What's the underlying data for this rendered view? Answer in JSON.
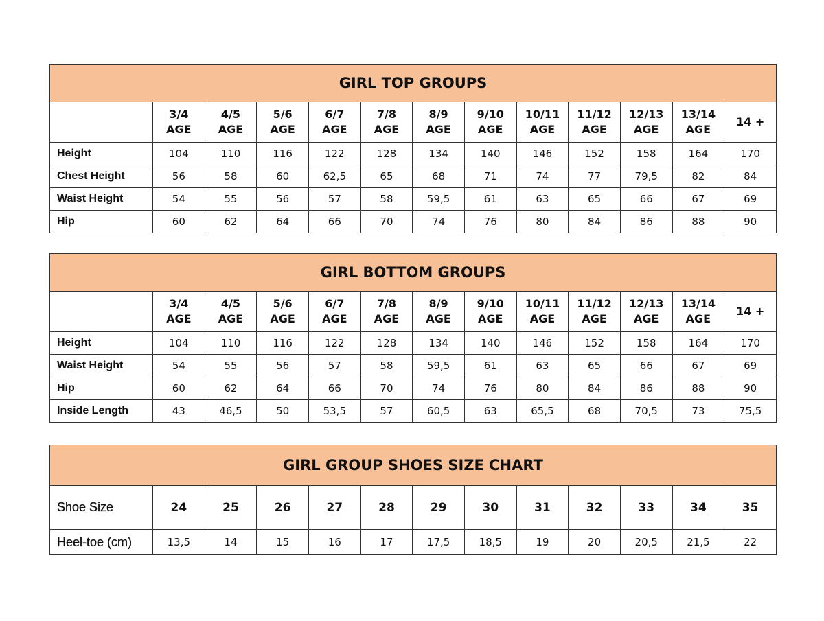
{
  "colors": {
    "header_bg": "#f8c097",
    "border": "#333333"
  },
  "tables": [
    {
      "title": "GIRL TOP GROUPS",
      "columns": [
        "3/4\nAGE",
        "4/5\nAGE",
        "5/6\nAGE",
        "6/7\nAGE",
        "7/8\nAGE",
        "8/9\nAGE",
        "9/10\nAGE",
        "10/11\nAGE",
        "11/12\nAGE",
        "12/13\nAGE",
        "13/14\nAGE",
        "14 +"
      ],
      "rows": [
        {
          "label": "Height",
          "values": [
            "104",
            "110",
            "116",
            "122",
            "128",
            "134",
            "140",
            "146",
            "152",
            "158",
            "164",
            "170"
          ]
        },
        {
          "label": "Chest Height",
          "values": [
            "56",
            "58",
            "60",
            "62,5",
            "65",
            "68",
            "71",
            "74",
            "77",
            "79,5",
            "82",
            "84"
          ]
        },
        {
          "label": "Waist Height",
          "values": [
            "54",
            "55",
            "56",
            "57",
            "58",
            "59,5",
            "61",
            "63",
            "65",
            "66",
            "67",
            "69"
          ]
        },
        {
          "label": "Hip",
          "values": [
            "60",
            "62",
            "64",
            "66",
            "70",
            "74",
            "76",
            "80",
            "84",
            "86",
            "88",
            "90"
          ]
        }
      ]
    },
    {
      "title": "GIRL BOTTOM GROUPS",
      "columns": [
        "3/4\nAGE",
        "4/5\nAGE",
        "5/6\nAGE",
        "6/7\nAGE",
        "7/8\nAGE",
        "8/9\nAGE",
        "9/10\nAGE",
        "10/11\nAGE",
        "11/12\nAGE",
        "12/13\nAGE",
        "13/14\nAGE",
        "14 +"
      ],
      "rows": [
        {
          "label": "Height",
          "values": [
            "104",
            "110",
            "116",
            "122",
            "128",
            "134",
            "140",
            "146",
            "152",
            "158",
            "164",
            "170"
          ]
        },
        {
          "label": "Waist Height",
          "values": [
            "54",
            "55",
            "56",
            "57",
            "58",
            "59,5",
            "61",
            "63",
            "65",
            "66",
            "67",
            "69"
          ]
        },
        {
          "label": "Hip",
          "values": [
            "60",
            "62",
            "64",
            "66",
            "70",
            "74",
            "76",
            "80",
            "84",
            "86",
            "88",
            "90"
          ]
        },
        {
          "label": "Inside Length",
          "values": [
            "43",
            "46,5",
            "50",
            "53,5",
            "57",
            "60,5",
            "63",
            "65,5",
            "68",
            "70,5",
            "73",
            "75,5"
          ]
        }
      ]
    },
    {
      "title": "GIRL GROUP SHOES SIZE CHART",
      "shoe_row": {
        "label": "Shoe Size",
        "values": [
          "24",
          "25",
          "26",
          "27",
          "28",
          "29",
          "30",
          "31",
          "32",
          "33",
          "34",
          "35"
        ]
      },
      "rows": [
        {
          "label": "Heel-toe (cm)",
          "values": [
            "13,5",
            "14",
            "15",
            "16",
            "17",
            "17,5",
            "18,5",
            "19",
            "20",
            "20,5",
            "21,5",
            "22"
          ]
        }
      ]
    }
  ]
}
